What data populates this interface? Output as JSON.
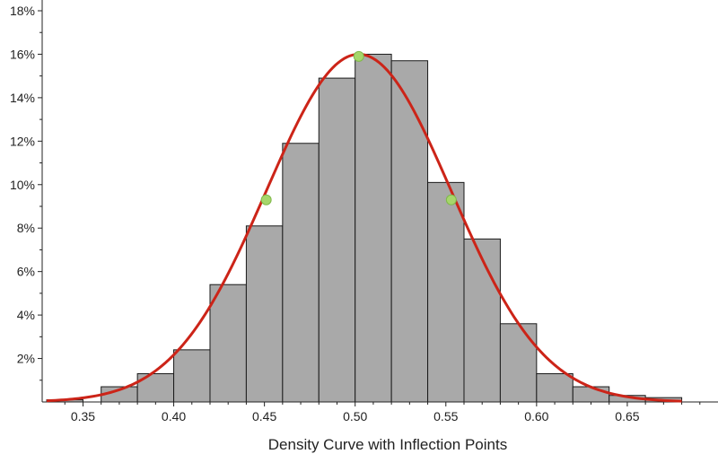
{
  "chart_data": {
    "type": "bar",
    "title": "",
    "xlabel": "Density Curve with Inflection Points",
    "ylabel": "",
    "xlim": [
      0.3275,
      0.7
    ],
    "ylim": [
      0,
      18
    ],
    "x_ticks": [
      0.35,
      0.4,
      0.45,
      0.5,
      0.55,
      0.6,
      0.65
    ],
    "x_tick_labels": [
      "0.35",
      "0.40",
      "0.45",
      "0.50",
      "0.55",
      "0.60",
      "0.65"
    ],
    "y_ticks": [
      2,
      4,
      6,
      8,
      10,
      12,
      14,
      16,
      18
    ],
    "y_tick_labels": [
      "2%",
      "4%",
      "6%",
      "8%",
      "10%",
      "12%",
      "14%",
      "16%",
      "18%"
    ],
    "grid": false,
    "legend": "none",
    "bin_width": 0.02,
    "bins": [
      {
        "start": 0.33,
        "value": 0.1
      },
      {
        "start": 0.36,
        "value": 0.7
      },
      {
        "start": 0.38,
        "value": 1.3
      },
      {
        "start": 0.4,
        "value": 2.4
      },
      {
        "start": 0.42,
        "value": 5.4
      },
      {
        "start": 0.44,
        "value": 8.1
      },
      {
        "start": 0.46,
        "value": 11.9
      },
      {
        "start": 0.48,
        "value": 14.9
      },
      {
        "start": 0.5,
        "value": 16.0
      },
      {
        "start": 0.52,
        "value": 15.7
      },
      {
        "start": 0.54,
        "value": 10.1
      },
      {
        "start": 0.56,
        "value": 7.5
      },
      {
        "start": 0.58,
        "value": 3.6
      },
      {
        "start": 0.6,
        "value": 1.3
      },
      {
        "start": 0.62,
        "value": 0.7
      },
      {
        "start": 0.64,
        "value": 0.3
      },
      {
        "start": 0.66,
        "value": 0.2
      }
    ],
    "curve": {
      "type": "normal",
      "mean": 0.502,
      "sd": 0.051,
      "peak": 16.0,
      "x_range": [
        0.33,
        0.68
      ]
    },
    "points": [
      {
        "x": 0.451,
        "y": 9.3
      },
      {
        "x": 0.502,
        "y": 15.9
      },
      {
        "x": 0.553,
        "y": 9.3
      }
    ],
    "colors": {
      "bar_fill": "#a9a9a9",
      "bar_stroke": "#1a1a1a",
      "curve": "#cc2418",
      "point_fill": "#a6d66b",
      "point_stroke": "#7fb84a",
      "axis": "#222222"
    }
  }
}
